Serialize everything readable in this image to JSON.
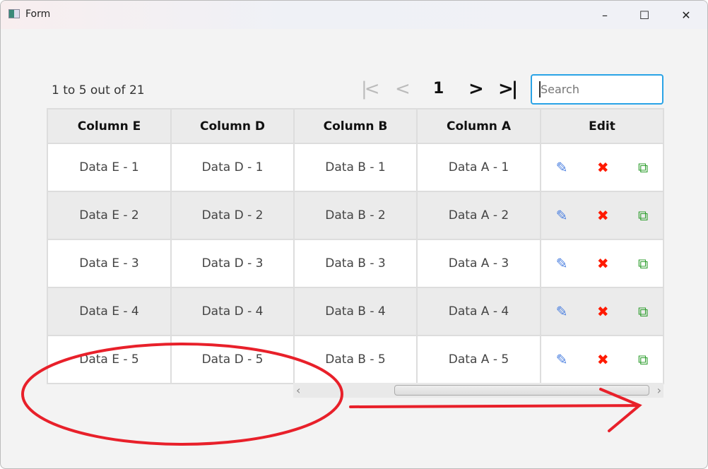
{
  "window": {
    "title": "Form",
    "minimize": "–",
    "maximize": "☐",
    "close": "✕"
  },
  "pagination": {
    "info": "1 to 5 out of 21",
    "first": "|<",
    "prev": "<",
    "current": "1",
    "next": ">",
    "last": ">|"
  },
  "search": {
    "placeholder": "Search",
    "value": ""
  },
  "table": {
    "headers": [
      "Column E",
      "Column D",
      "Column B",
      "Column A",
      "Edit"
    ],
    "rows": [
      [
        "Data E - 1",
        "Data D - 1",
        "Data B - 1",
        "Data A - 1"
      ],
      [
        "Data E - 2",
        "Data D - 2",
        "Data B - 2",
        "Data A - 2"
      ],
      [
        "Data E - 3",
        "Data D - 3",
        "Data B - 3",
        "Data A - 3"
      ],
      [
        "Data E - 4",
        "Data D - 4",
        "Data B - 4",
        "Data A - 4"
      ],
      [
        "Data E - 5",
        "Data D - 5",
        "Data B - 5",
        "Data A - 5"
      ]
    ],
    "row_actions": {
      "edit_icon": "edit-icon",
      "delete_icon": "delete-icon",
      "copy_icon": "copy-icon"
    }
  },
  "colors": {
    "accent": "#2aa3e6",
    "edit": "#4a7fe0",
    "delete": "#ff1a00",
    "copy": "#2e9e2e",
    "annotation": "#e8202a"
  },
  "scrollbar": {
    "left": "‹",
    "right": "›",
    "position_percent": 100
  }
}
